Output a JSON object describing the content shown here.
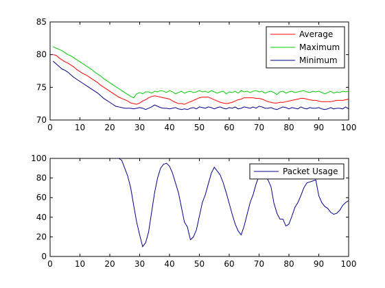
{
  "colors": {
    "background": "#ffffff",
    "axes": "#000000",
    "average": "#ff0000",
    "maximum": "#00cc00",
    "minimum": "#00008b",
    "packet_usage": "#00008b"
  },
  "chart_data": [
    {
      "type": "line",
      "title": "",
      "xlabel": "",
      "ylabel": "",
      "xlim": [
        0,
        100
      ],
      "ylim": [
        70,
        85
      ],
      "xticks": [
        "0",
        "10",
        "20",
        "30",
        "40",
        "50",
        "60",
        "70",
        "80",
        "90",
        "100"
      ],
      "yticks": [
        "70",
        "75",
        "80",
        "85"
      ],
      "grid": false,
      "legend_position": "top-right",
      "x": [
        1,
        2,
        3,
        4,
        5,
        6,
        7,
        8,
        9,
        10,
        11,
        12,
        13,
        14,
        15,
        16,
        17,
        18,
        19,
        20,
        21,
        22,
        23,
        24,
        25,
        26,
        27,
        28,
        29,
        30,
        31,
        32,
        33,
        34,
        35,
        36,
        37,
        38,
        39,
        40,
        41,
        42,
        43,
        44,
        45,
        46,
        47,
        48,
        49,
        50,
        51,
        52,
        53,
        54,
        55,
        56,
        57,
        58,
        59,
        60,
        61,
        62,
        63,
        64,
        65,
        66,
        67,
        68,
        69,
        70,
        71,
        72,
        73,
        74,
        75,
        76,
        77,
        78,
        79,
        80,
        81,
        82,
        83,
        84,
        85,
        86,
        87,
        88,
        89,
        90,
        91,
        92,
        93,
        94,
        95,
        96,
        97,
        98,
        99,
        100
      ],
      "series": [
        {
          "name": "Average",
          "color": "#ff0000",
          "values": [
            80.0,
            79.9,
            79.5,
            79.2,
            78.9,
            78.7,
            78.4,
            78.1,
            77.7,
            77.4,
            77.1,
            76.9,
            76.6,
            76.3,
            76.0,
            75.7,
            75.3,
            75.0,
            74.7,
            74.4,
            74.1,
            73.8,
            73.5,
            73.3,
            73.1,
            72.9,
            72.6,
            72.5,
            72.4,
            72.6,
            72.9,
            73.1,
            73.4,
            73.6,
            73.7,
            73.6,
            73.5,
            73.4,
            73.3,
            73.2,
            72.9,
            72.7,
            72.5,
            72.5,
            72.4,
            72.6,
            72.8,
            73.0,
            73.2,
            73.4,
            73.5,
            73.5,
            73.5,
            73.3,
            73.1,
            72.9,
            72.7,
            72.6,
            72.5,
            72.6,
            72.7,
            72.9,
            73.1,
            73.2,
            73.4,
            73.4,
            73.4,
            73.4,
            73.3,
            73.3,
            73.2,
            73.0,
            72.8,
            72.7,
            72.6,
            72.6,
            72.7,
            72.7,
            72.8,
            72.9,
            73.0,
            73.1,
            73.2,
            73.3,
            73.3,
            73.2,
            73.1,
            73.0,
            73.0,
            72.9,
            72.8,
            72.8,
            72.8,
            72.8,
            72.9,
            73.0,
            73.0,
            73.0,
            73.1,
            73.2
          ]
        },
        {
          "name": "Maximum",
          "color": "#00cc00",
          "values": [
            81.2,
            81.0,
            80.8,
            80.6,
            80.3,
            80.0,
            79.8,
            79.5,
            79.2,
            78.9,
            78.6,
            78.3,
            78.0,
            77.7,
            77.3,
            77.0,
            76.7,
            76.3,
            76.0,
            75.7,
            75.4,
            75.1,
            74.8,
            74.5,
            74.2,
            73.9,
            73.6,
            73.4,
            74.0,
            74.2,
            74.0,
            74.3,
            74.3,
            74.1,
            74.4,
            74.3,
            74.5,
            74.4,
            74.2,
            74.5,
            74.3,
            74.0,
            74.2,
            74.4,
            74.1,
            74.3,
            74.4,
            74.2,
            74.3,
            74.5,
            74.3,
            74.4,
            74.2,
            74.5,
            74.3,
            74.1,
            74.3,
            74.4,
            74.0,
            74.3,
            74.2,
            74.4,
            74.1,
            74.5,
            74.3,
            74.4,
            74.2,
            74.4,
            74.5,
            74.3,
            74.4,
            74.1,
            74.3,
            74.4,
            74.2,
            73.9,
            74.3,
            74.4,
            74.1,
            74.3,
            74.4,
            74.2,
            74.3,
            74.4,
            74.5,
            74.3,
            74.2,
            74.4,
            74.3,
            74.4,
            74.2,
            74.0,
            74.2,
            74.4,
            74.1,
            74.3,
            74.2,
            74.4,
            74.3,
            74.4
          ]
        },
        {
          "name": "Minimum",
          "color": "#00008b",
          "values": [
            79.0,
            78.6,
            78.2,
            77.8,
            77.6,
            77.3,
            76.9,
            76.5,
            76.2,
            75.9,
            75.6,
            75.3,
            75.0,
            74.7,
            74.4,
            74.1,
            73.7,
            73.3,
            73.0,
            72.7,
            72.4,
            72.1,
            72.0,
            71.9,
            71.8,
            71.8,
            71.8,
            71.7,
            71.8,
            71.9,
            71.8,
            71.6,
            71.8,
            72.0,
            72.3,
            72.1,
            71.9,
            71.8,
            71.8,
            71.7,
            71.8,
            71.9,
            71.7,
            71.6,
            71.7,
            71.6,
            71.8,
            71.9,
            71.7,
            72.0,
            71.9,
            71.8,
            72.0,
            71.9,
            71.7,
            71.9,
            72.0,
            71.8,
            71.7,
            71.9,
            71.8,
            72.0,
            71.7,
            71.8,
            72.0,
            71.9,
            71.8,
            72.0,
            71.8,
            72.1,
            72.0,
            71.8,
            71.8,
            71.9,
            71.7,
            71.6,
            71.8,
            72.0,
            71.9,
            71.7,
            71.9,
            71.8,
            71.7,
            72.0,
            71.8,
            71.7,
            71.9,
            71.8,
            71.8,
            71.9,
            71.7,
            71.6,
            71.7,
            71.9,
            71.7,
            71.8,
            71.8,
            71.7,
            72.0,
            71.7
          ]
        }
      ]
    },
    {
      "type": "line",
      "title": "",
      "xlabel": "",
      "ylabel": "",
      "xlim": [
        0,
        100
      ],
      "ylim": [
        0,
        100
      ],
      "xticks": [
        "0",
        "10",
        "20",
        "30",
        "40",
        "50",
        "60",
        "70",
        "80",
        "90",
        "100"
      ],
      "yticks": [
        "0",
        "20",
        "40",
        "60",
        "80",
        "100"
      ],
      "grid": false,
      "legend_position": "top-right",
      "x": [
        23,
        24,
        25,
        26,
        27,
        28,
        29,
        30,
        31,
        32,
        33,
        34,
        35,
        36,
        37,
        38,
        39,
        40,
        41,
        42,
        43,
        44,
        45,
        46,
        47,
        48,
        49,
        50,
        51,
        52,
        53,
        54,
        55,
        56,
        57,
        58,
        59,
        60,
        61,
        62,
        63,
        64,
        65,
        66,
        67,
        68,
        69,
        70,
        71,
        72,
        73,
        74,
        75,
        76,
        77,
        78,
        79,
        80,
        81,
        82,
        83,
        84,
        85,
        86,
        87,
        88,
        89,
        90,
        91,
        92,
        93,
        94,
        95,
        96,
        97,
        98,
        99,
        100
      ],
      "series": [
        {
          "name": "Packet Usage",
          "color": "#00008b",
          "values": [
            100,
            98,
            90,
            82,
            70,
            52,
            35,
            22,
            10,
            14,
            25,
            45,
            65,
            80,
            90,
            94,
            95,
            92,
            85,
            75,
            65,
            50,
            35,
            30,
            17,
            20,
            27,
            41,
            55,
            63,
            74,
            85,
            91,
            87,
            83,
            75,
            65,
            54,
            43,
            33,
            26,
            22,
            31,
            43,
            55,
            63,
            74,
            82,
            84,
            83,
            78,
            71,
            54,
            44,
            38,
            38,
            31,
            33,
            41,
            50,
            55,
            62,
            70,
            75,
            76,
            77,
            78,
            62,
            55,
            51,
            49,
            45,
            43,
            44,
            47,
            52,
            55,
            57
          ]
        }
      ]
    }
  ]
}
